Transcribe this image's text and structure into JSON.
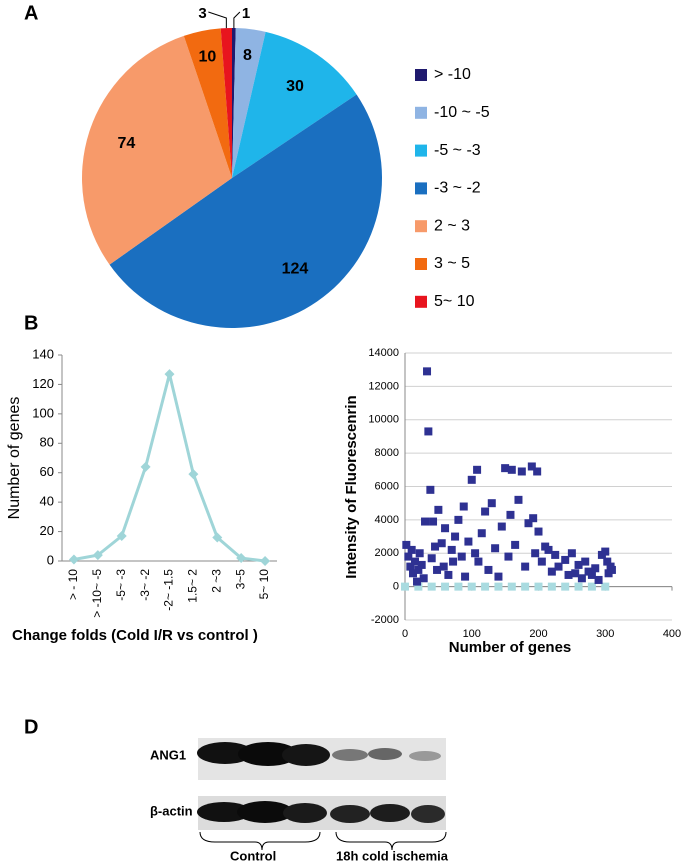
{
  "chart_data": [
    {
      "type": "pie",
      "panel_label": "A",
      "categories": [
        "> -10",
        "-10 ~ -5",
        "-5 ~ -3",
        "-3 ~ -2",
        "2 ~ 3",
        "3 ~ 5",
        "5~ 10"
      ],
      "values": [
        1,
        8,
        30,
        124,
        74,
        10,
        3
      ],
      "colors": [
        "#1f1a6e",
        "#8fb4e3",
        "#1fb5ea",
        "#1a6fc0",
        "#f79a6a",
        "#f26a10",
        "#e8141e"
      ],
      "legend": "right"
    },
    {
      "type": "line",
      "panel_label": "B",
      "categories": [
        "> - 10",
        "> -10~ -5",
        "-5~ -3",
        "-3~ -2",
        "-2~ -1.5",
        "1.5~ 2",
        "2 ~3",
        "3~5",
        "5~ 10"
      ],
      "values": [
        1,
        4,
        17,
        64,
        127,
        59,
        16,
        2,
        0
      ],
      "color": "#9fd5d8",
      "ylim": [
        0,
        140
      ],
      "yticks": [
        0,
        20,
        40,
        60,
        80,
        100,
        120,
        140
      ],
      "y_label": "Number of genes",
      "x_label": "Change folds  (Cold I/R vs control )"
    },
    {
      "type": "scatter",
      "series": [
        {
          "color": "#2e3192",
          "x": [
            2,
            5,
            8,
            10,
            12,
            15,
            18,
            20,
            22,
            25,
            28,
            30,
            33,
            35,
            38,
            40,
            42,
            45,
            48,
            50,
            55,
            58,
            60,
            65,
            70,
            72,
            75,
            80,
            85,
            88,
            90,
            95,
            100,
            105,
            108,
            110,
            115,
            120,
            125,
            130,
            135,
            140,
            145,
            150,
            155,
            158,
            160,
            165,
            170,
            175,
            180,
            185,
            190,
            192,
            195,
            198,
            200,
            205,
            210,
            215,
            220,
            225,
            230,
            240,
            245,
            250,
            255,
            260,
            265,
            270,
            275,
            280,
            285,
            290,
            295,
            300,
            303,
            305,
            308,
            310
          ],
          "values": [
            2500,
            1800,
            1200,
            2200,
            800,
            1500,
            300,
            1000,
            2000,
            1300,
            500,
            3900,
            12900,
            9300,
            5800,
            1700,
            3900,
            2400,
            1000,
            4600,
            2600,
            1200,
            3500,
            700,
            2200,
            1500,
            3000,
            4000,
            1800,
            4800,
            600,
            2700,
            6400,
            2000,
            7000,
            1500,
            3200,
            4500,
            1000,
            5000,
            2300,
            600,
            3600,
            7100,
            1800,
            4300,
            7000,
            2500,
            5200,
            6900,
            1200,
            3800,
            7200,
            4100,
            2000,
            6900,
            3300,
            1500,
            2400,
            2200,
            900,
            1900,
            1200,
            1600,
            700,
            2000,
            800,
            1300,
            500,
            1500,
            900,
            700,
            1100,
            400,
            1900,
            2100,
            1500,
            800,
            1200,
            1000
          ]
        },
        {
          "color": "#a9dbe0",
          "x": [
            0,
            20,
            40,
            60,
            80,
            100,
            120,
            140,
            160,
            180,
            200,
            220,
            240,
            260,
            280,
            300
          ],
          "values": [
            0,
            0,
            0,
            0,
            0,
            0,
            0,
            0,
            0,
            0,
            0,
            0,
            0,
            0,
            0,
            0
          ]
        }
      ],
      "xlim": [
        0,
        400
      ],
      "xticks": [
        0,
        100,
        200,
        300,
        400
      ],
      "ylim": [
        -2000,
        14000
      ],
      "yticks": [
        -2000,
        0,
        2000,
        4000,
        6000,
        8000,
        10000,
        12000,
        14000
      ],
      "grid": true,
      "y_label": "Intensity of Fluorescenrin",
      "x_label": "Number of genes"
    }
  ],
  "blot": {
    "panel_label": "D",
    "rows": [
      "ANG1",
      "β-actin"
    ],
    "groups": [
      "Control",
      "18h cold ischemia"
    ]
  }
}
